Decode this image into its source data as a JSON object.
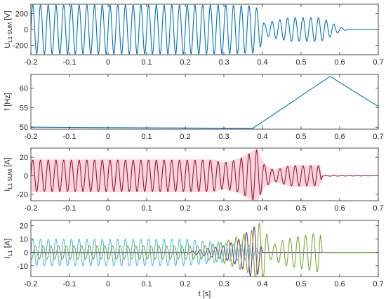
{
  "chart_data": [
    {
      "type": "line",
      "ylabel": "U",
      "ylabel_sub": "L1 SUM",
      "ylabel_unit": " [V]",
      "xlim": [
        -0.2,
        0.7
      ],
      "ylim": [
        -320,
        320
      ],
      "yticks": [
        -200,
        0,
        200
      ],
      "xticks": [
        -0.2,
        -0.1,
        0,
        0.1,
        0.2,
        0.3,
        0.4,
        0.5,
        0.6,
        0.7
      ],
      "grid": false,
      "series": [
        {
          "color": "#0072BD",
          "envelope": {
            "t": [
              -0.2,
              0.3,
              0.38,
              0.395,
              0.405,
              0.43,
              0.47,
              0.55,
              0.57,
              0.6,
              0.62,
              0.7
            ],
            "amp": [
              310,
              310,
              300,
              220,
              70,
              110,
              150,
              150,
              110,
              30,
              3,
              0
            ]
          }
        }
      ]
    },
    {
      "type": "line",
      "ylabel": "f",
      "ylabel_sub": "",
      "ylabel_unit": " [Hz]",
      "xlim": [
        -0.2,
        0.7
      ],
      "ylim": [
        49.5,
        63.5
      ],
      "yticks": [
        50,
        55,
        60
      ],
      "xticks": [
        -0.2,
        -0.1,
        0,
        0.1,
        0.2,
        0.3,
        0.4,
        0.5,
        0.6,
        0.7
      ],
      "grid": false,
      "series": [
        {
          "color": "#0072BD",
          "x": [
            -0.2,
            0.375,
            0.575,
            0.7
          ],
          "y": [
            50,
            49.7,
            63,
            55.3
          ]
        }
      ]
    },
    {
      "type": "line",
      "ylabel": "I",
      "ylabel_sub": "L1 SUM",
      "ylabel_unit": " [A]",
      "xlim": [
        -0.2,
        0.7
      ],
      "ylim": [
        -27,
        30
      ],
      "yticks": [
        -20,
        0,
        20
      ],
      "xticks": [
        -0.2,
        -0.1,
        0,
        0.1,
        0.2,
        0.3,
        0.4,
        0.5,
        0.6,
        0.7
      ],
      "grid": false,
      "series": [
        {
          "color": "#A2142F",
          "band_color": "#F4B6C8",
          "envelope": {
            "t": [
              -0.2,
              0.27,
              0.3,
              0.34,
              0.37,
              0.385,
              0.405,
              0.43,
              0.47,
              0.55,
              0.555,
              0.7
            ],
            "amp": [
              17,
              17,
              14,
              18,
              25,
              28,
              12,
              6,
              11,
              11,
              0.5,
              0
            ]
          }
        }
      ]
    },
    {
      "type": "line",
      "ylabel": "I",
      "ylabel_sub": "L1",
      "ylabel_unit": " [A]",
      "xlabel": "t [s]",
      "xlim": [
        -0.2,
        0.7
      ],
      "ylim": [
        -18,
        24
      ],
      "yticks": [
        -10,
        0,
        10,
        20
      ],
      "xticks": [
        -0.2,
        -0.1,
        0,
        0.1,
        0.2,
        0.3,
        0.4,
        0.5,
        0.6,
        0.7
      ],
      "grid": false,
      "series": [
        {
          "color": "#4DBEEE",
          "envelope": {
            "t": [
              -0.2,
              0.2,
              0.3,
              0.37,
              0.385,
              0.4,
              0.7
            ],
            "amp": [
              10,
              10,
              7,
              5,
              3,
              0,
              0
            ]
          }
        },
        {
          "color": "#7E2F8E",
          "envelope": {
            "t": [
              -0.2,
              0.2,
              0.26,
              0.3,
              0.34,
              0.37,
              0.385,
              0.395,
              0.4,
              0.7
            ],
            "amp": [
              0,
              0,
              3,
              5,
              10,
              18,
              20,
              8,
              0,
              0
            ]
          }
        },
        {
          "color": "#77AC30",
          "envelope": {
            "t": [
              -0.2,
              0.25,
              0.3,
              0.37,
              0.39,
              0.405,
              0.42,
              0.46,
              0.55,
              0.555,
              0.7
            ],
            "amp": [
              5,
              5,
              8,
              16,
              22,
              20,
              5,
              10,
              15,
              0,
              0
            ]
          }
        }
      ]
    }
  ]
}
